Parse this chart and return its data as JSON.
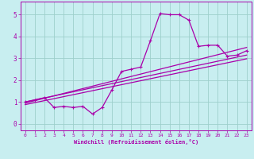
{
  "title": "",
  "xlabel": "Windchill (Refroidissement éolien,°C)",
  "ylabel": "",
  "bg_color": "#c8eef0",
  "grid_color": "#9ecfcc",
  "line_color": "#aa00aa",
  "xlim": [
    -0.5,
    23.5
  ],
  "ylim": [
    -0.3,
    5.6
  ],
  "xticks": [
    0,
    1,
    2,
    3,
    4,
    5,
    6,
    7,
    8,
    9,
    10,
    11,
    12,
    13,
    14,
    15,
    16,
    17,
    18,
    19,
    20,
    21,
    22,
    23
  ],
  "yticks": [
    0,
    1,
    2,
    3,
    4,
    5
  ],
  "zigzag_x": [
    0,
    1,
    2,
    3,
    4,
    5,
    6,
    7,
    8,
    9,
    10,
    11,
    12,
    13,
    14,
    15,
    16,
    17,
    18,
    19,
    20,
    21,
    22,
    23
  ],
  "zigzag_y": [
    1.0,
    1.1,
    1.2,
    0.75,
    0.8,
    0.75,
    0.8,
    0.45,
    0.75,
    1.55,
    2.4,
    2.5,
    2.6,
    3.8,
    5.05,
    5.0,
    5.0,
    4.75,
    3.55,
    3.6,
    3.6,
    3.1,
    3.15,
    3.35
  ],
  "line1_x": [
    0,
    23
  ],
  "line1_y": [
    0.95,
    3.5
  ],
  "line2_x": [
    0,
    23
  ],
  "line2_y": [
    1.0,
    3.15
  ],
  "line3_x": [
    0,
    23
  ],
  "line3_y": [
    0.88,
    2.98
  ]
}
